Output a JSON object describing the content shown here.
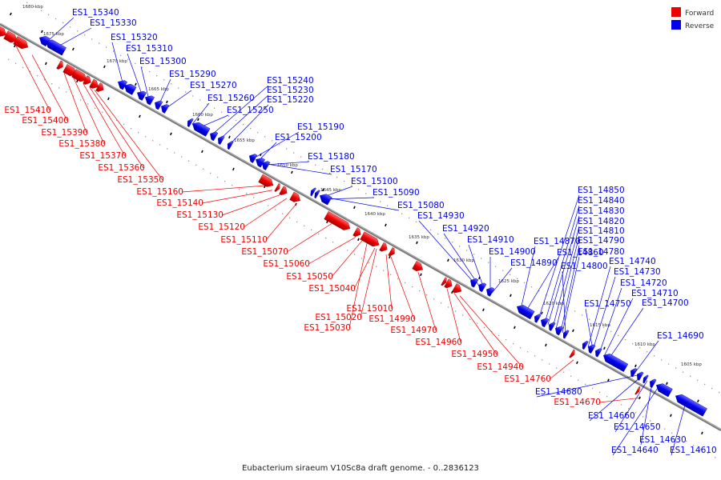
{
  "legend": {
    "forward": {
      "label": "Forward",
      "color": "#ee0000"
    },
    "reverse": {
      "label": "Reverse",
      "color": "#0000ee"
    }
  },
  "caption": "Eubacterium siraeum V10Sc8a draft genome. - 0..2836123",
  "ticks": [
    "1680 kbp",
    "1675 kbp",
    "1670 kbp",
    "1665 kbp",
    "1660 kbp",
    "1655 kbp",
    "1650 kbp",
    "1645 kbp",
    "1640 kbp",
    "1635 kbp",
    "1630 kbp",
    "1625 kbp",
    "1620 kbp",
    "1615 kbp",
    "1610 kbp",
    "1605 kbp"
  ],
  "reverse_labels": [
    "ES1_15340",
    "ES1_15330",
    "ES1_15320",
    "ES1_15310",
    "ES1_15300",
    "ES1_15290",
    "ES1_15270",
    "ES1_15260",
    "ES1_15250",
    "ES1_15240",
    "ES1_15230",
    "ES1_15220",
    "ES1_15190",
    "ES1_15200",
    "ES1_15180",
    "ES1_15170",
    "ES1_15100",
    "ES1_15090",
    "ES1_15080",
    "ES1_14930",
    "ES1_14920",
    "ES1_14910",
    "ES1_14900",
    "ES1_14890",
    "ES1_14870",
    "ES1_14860",
    "ES1_14850",
    "ES1_14840",
    "ES1_14830",
    "ES1_14820",
    "ES1_14810",
    "ES1_14790",
    "ES1_14780",
    "ES1_14800",
    "ES1_14740",
    "ES1_14730",
    "ES1_14720",
    "ES1_14710",
    "ES1_14750",
    "ES1_14700",
    "ES1_14690",
    "ES1_14680",
    "ES1_14660",
    "ES1_14650",
    "ES1_14630",
    "ES1_14640",
    "ES1_14610"
  ],
  "forward_labels": [
    "ES1_15410",
    "ES1_15400",
    "ES1_15390",
    "ES1_15380",
    "ES1_15370",
    "ES1_15360",
    "ES1_15350",
    "ES1_15160",
    "ES1_15140",
    "ES1_15130",
    "ES1_15120",
    "ES1_15110",
    "ES1_15070",
    "ES1_15060",
    "ES1_15050",
    "ES1_15040",
    "ES1_15010",
    "ES1_15020",
    "ES1_14990",
    "ES1_15030",
    "ES1_14970",
    "ES1_14960",
    "ES1_14950",
    "ES1_14940",
    "ES1_14760",
    "ES1_14670"
  ]
}
